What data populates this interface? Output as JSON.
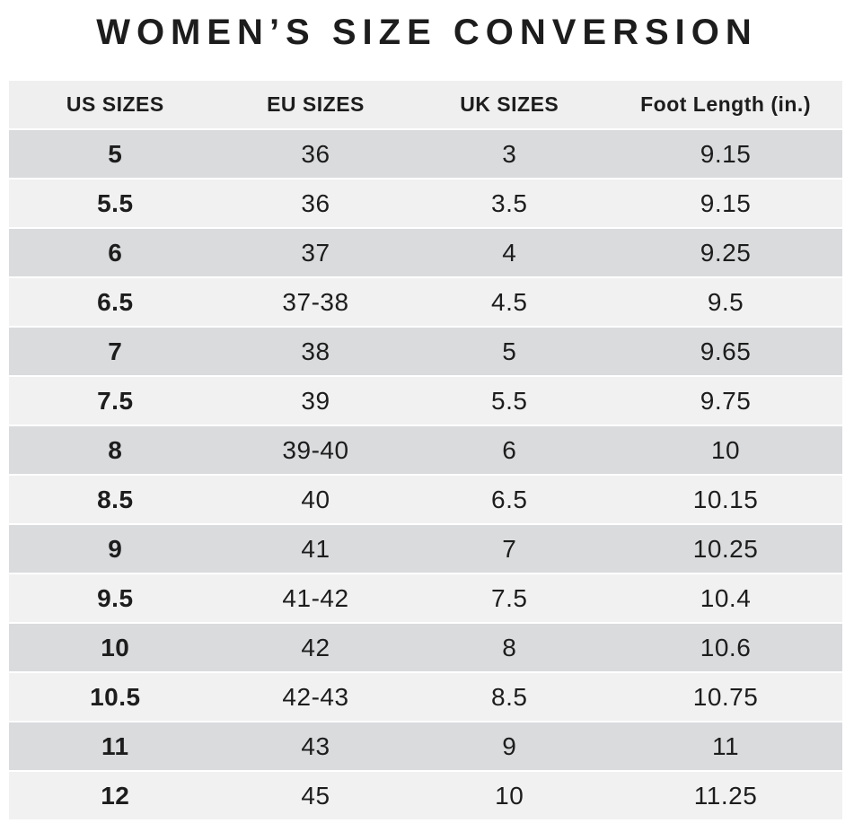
{
  "title": "WOMEN’S SIZE CONVERSION",
  "chart_data": {
    "type": "table",
    "title": "WOMEN’S SIZE CONVERSION",
    "headers": [
      "US SIZES",
      "EU SIZES",
      "UK SIZES",
      "Foot Length (in.)"
    ],
    "rows": [
      [
        "5",
        "36",
        "3",
        "9.15"
      ],
      [
        "5.5",
        "36",
        "3.5",
        "9.15"
      ],
      [
        "6",
        "37",
        "4",
        "9.25"
      ],
      [
        "6.5",
        "37-38",
        "4.5",
        "9.5"
      ],
      [
        "7",
        "38",
        "5",
        "9.65"
      ],
      [
        "7.5",
        "39",
        "5.5",
        "9.75"
      ],
      [
        "8",
        "39-40",
        "6",
        "10"
      ],
      [
        "8.5",
        "40",
        "6.5",
        "10.15"
      ],
      [
        "9",
        "41",
        "7",
        "10.25"
      ],
      [
        "9.5",
        "41-42",
        "7.5",
        "10.4"
      ],
      [
        "10",
        "42",
        "8",
        "10.6"
      ],
      [
        "10.5",
        "42-43",
        "8.5",
        "10.75"
      ],
      [
        "11",
        "43",
        "9",
        "11"
      ],
      [
        "12",
        "45",
        "10",
        "11.25"
      ]
    ],
    "layout": {
      "row_striping": "odd rows dark, even rows light, starting dark",
      "first_column_bold": true
    }
  },
  "colors": {
    "text": "#1d1d1d",
    "header_bg": "#efefef",
    "row_dark": "#d9dbdd",
    "row_light": "#f1f1f2",
    "page_bg": "#ffffff"
  }
}
